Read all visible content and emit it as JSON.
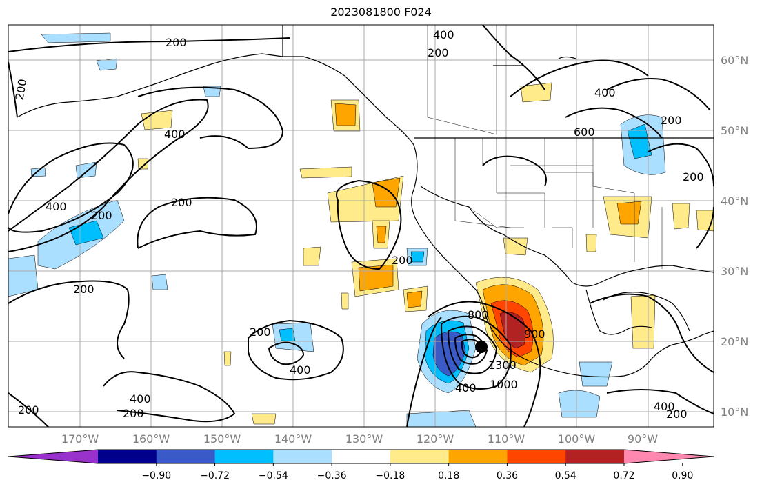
{
  "title": "2023081800 F024",
  "lat_ticks": [
    "60°N",
    "50°N",
    "40°N",
    "30°N",
    "20°N",
    "10°N"
  ],
  "lon_ticks": [
    "170°W",
    "160°W",
    "150°W",
    "140°W",
    "130°W",
    "120°W",
    "110°W",
    "100°W",
    "90°W"
  ],
  "colorbar": {
    "colors": [
      "#9932cc",
      "#00008b",
      "#3a5bc7",
      "#00bfff",
      "#aadfff",
      "#ffffff",
      "#ffeb8a",
      "#ffa500",
      "#ff4500",
      "#b22222",
      "#ff88b0"
    ],
    "tick_labels": [
      "−0.90",
      "−0.72",
      "−0.54",
      "−0.36",
      "−0.18",
      "0.18",
      "0.36",
      "0.54",
      "0.72",
      "0.90"
    ]
  },
  "contour_labels": [
    "200",
    "400",
    "200",
    "200",
    "400",
    "200",
    "400",
    "200",
    "200",
    "200",
    "400",
    "200",
    "200",
    "400",
    "400",
    "200",
    "600",
    "200",
    "200",
    "800",
    "1300",
    "1000",
    "900",
    "400",
    "400",
    "200"
  ],
  "center_marker": "storm-center-dot"
}
